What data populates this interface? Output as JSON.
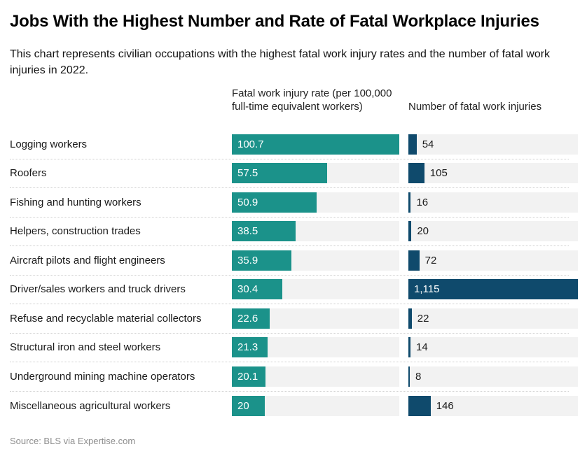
{
  "header": {
    "title": "Jobs With the Highest Number and Rate of Fatal Workplace Injuries",
    "subtitle": "This chart represents civilian occupations with the highest fatal work injury rates and the number of fatal work injuries in 2022."
  },
  "columns": {
    "rate_header": "Fatal work injury rate (per 100,000 full-time equivalent workers)",
    "count_header": "Number of fatal work injuries"
  },
  "footer": {
    "source": "Source: BLS via Expertise.com"
  },
  "colors": {
    "rate_bar": "#1b928a",
    "count_bar": "#0f4a6c",
    "track": "#f2f2f2"
  },
  "chart_data": {
    "type": "bar",
    "orientation": "horizontal",
    "title": "Jobs With the Highest Number and Rate of Fatal Workplace Injuries",
    "categories": [
      "Logging workers",
      "Roofers",
      "Fishing and hunting workers",
      "Helpers, construction trades",
      "Aircraft pilots and flight engineers",
      "Driver/sales workers and truck drivers",
      "Refuse and recyclable material collectors",
      "Structural iron and steel workers",
      "Underground mining machine operators",
      "Miscellaneous agricultural workers"
    ],
    "series": [
      {
        "name": "Fatal work injury rate (per 100,000 full-time equivalent workers)",
        "values": [
          100.7,
          57.5,
          50.9,
          38.5,
          35.9,
          30.4,
          22.6,
          21.3,
          20.1,
          20
        ],
        "display": [
          "100.7",
          "57.5",
          "50.9",
          "38.5",
          "35.9",
          "30.4",
          "22.6",
          "21.3",
          "20.1",
          "20"
        ],
        "axis_max": 100.7
      },
      {
        "name": "Number of fatal work injuries",
        "values": [
          54,
          105,
          16,
          20,
          72,
          1115,
          22,
          14,
          8,
          146
        ],
        "display": [
          "54",
          "105",
          "16",
          "20",
          "72",
          "1,115",
          "22",
          "14",
          "8",
          "146"
        ],
        "axis_max": 1115
      }
    ],
    "legend_position": "none",
    "grid": false
  }
}
